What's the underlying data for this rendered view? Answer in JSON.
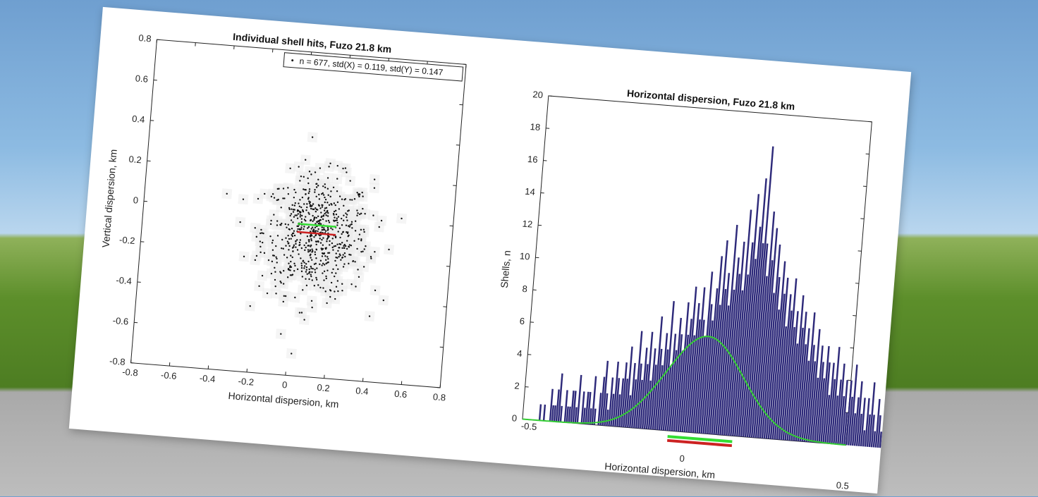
{
  "scatter": {
    "chart_data": {
      "type": "scatter",
      "title": "Individual shell hits, Fuzo 21.8 km",
      "xlabel": "Horizontal dispersion, km",
      "ylabel": "Vertical dispersion, km",
      "xlim": [
        -0.8,
        0.8
      ],
      "ylim": [
        -0.8,
        0.8
      ],
      "xticks": [
        -0.8,
        -0.6,
        -0.4,
        -0.2,
        0,
        0.2,
        0.4,
        0.6,
        0.8
      ],
      "yticks": [
        -0.8,
        -0.6,
        -0.4,
        -0.2,
        0,
        0.2,
        0.4,
        0.6,
        0.8
      ],
      "legend": "n = 677, std(X) = 0.119, std(Y) = 0.147",
      "legend_position": "top-right",
      "n": 677,
      "std_x": 0.119,
      "std_y": 0.147,
      "mean_x": 0.1,
      "mean_y": -0.1,
      "reference_lines": [
        {
          "color": "#33dd33",
          "x": [
            0.0,
            0.2
          ],
          "y": [
            -0.05,
            -0.05
          ]
        },
        {
          "color": "#cc2222",
          "x": [
            0.0,
            0.2
          ],
          "y": [
            -0.09,
            -0.09
          ]
        }
      ]
    }
  },
  "histogram": {
    "chart_data": {
      "type": "bar",
      "title": "Horizontal dispersion, Fuzo 21.8 km",
      "xlabel": "Horizontal dispersion, km",
      "ylabel": "Shells, n",
      "xlim": [
        -0.5,
        0.5
      ],
      "ylim": [
        0,
        20
      ],
      "xticks": [
        "-0.5",
        "0",
        "0.5"
      ],
      "yticks": [
        0,
        2,
        4,
        6,
        8,
        10,
        12,
        14,
        16,
        18,
        20
      ],
      "bar_color": "#2e2a7a",
      "curve_color": "#33cc33",
      "x_start": -0.45,
      "bin_width": 0.0065,
      "values": [
        1,
        0,
        1,
        0,
        0,
        2,
        1,
        1,
        2,
        3,
        1,
        0,
        2,
        1,
        1,
        2,
        2,
        1,
        3,
        0,
        2,
        1,
        2,
        2,
        1,
        3,
        1,
        0,
        2,
        3,
        4,
        2,
        1,
        3,
        2,
        4,
        3,
        2,
        3,
        4,
        3,
        5,
        2,
        4,
        3,
        6,
        4,
        3,
        5,
        4,
        6,
        3,
        5,
        4,
        7,
        5,
        4,
        6,
        5,
        8,
        4,
        6,
        5,
        7,
        6,
        5,
        8,
        6,
        7,
        9,
        6,
        8,
        7,
        9,
        7,
        6,
        10,
        8,
        7,
        9,
        11,
        8,
        12,
        9,
        10,
        8,
        13,
        9,
        11,
        10,
        12,
        9,
        14,
        10,
        12,
        15,
        11,
        13,
        16,
        12,
        18,
        12,
        10,
        14,
        11,
        13,
        9,
        12,
        10,
        8,
        11,
        9,
        10,
        7,
        9,
        8,
        10,
        7,
        8,
        6,
        9,
        7,
        8,
        6,
        7,
        5,
        8,
        6,
        5,
        7,
        4,
        6,
        5,
        4,
        6,
        5,
        3,
        5,
        4,
        6,
        3,
        4,
        5,
        3,
        4,
        2,
        4,
        3,
        5,
        2,
        3,
        4,
        2,
        3,
        1,
        3,
        2,
        4,
        2,
        1,
        3,
        2,
        1,
        2,
        3,
        1,
        2,
        0,
        1,
        2,
        1,
        2,
        1,
        1,
        0,
        1,
        2,
        1,
        0,
        1,
        0,
        1,
        0,
        1,
        1,
        0,
        2,
        0,
        1,
        0,
        1,
        0
      ],
      "fit_curve": {
        "mean": 0.05,
        "std": 0.119,
        "peak": 6
      },
      "reference_lines": [
        {
          "color": "#33dd33",
          "x": [
            -0.05,
            0.15
          ],
          "y": -0.35
        },
        {
          "color": "#cc2222",
          "x": [
            -0.05,
            0.15
          ],
          "y": -0.6
        }
      ]
    }
  }
}
